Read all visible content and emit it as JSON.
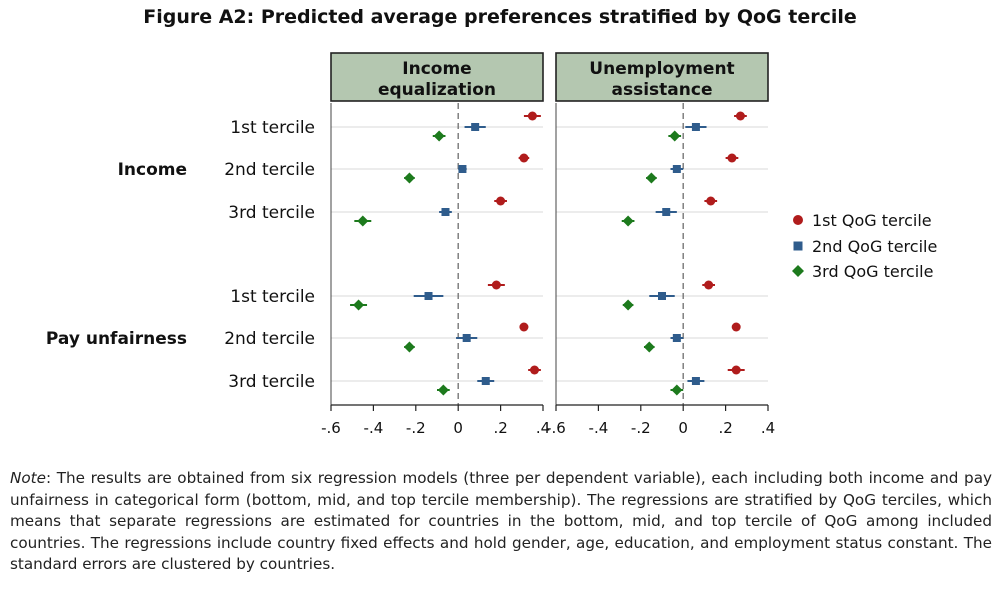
{
  "figure_title": "Figure A2: Predicted average preferences stratified by QoG tercile",
  "colors": {
    "s1": "#b01c1c",
    "s2": "#2f5c8c",
    "s3": "#1d7a1d",
    "strip": "#b4c7b0",
    "grid": "#d8d8d8",
    "zero_line": "#777777"
  },
  "chart_data": {
    "type": "dot-ci",
    "title": "Figure A2: Predicted average preferences stratified by QoG tercile",
    "facets": [
      {
        "title_lines": [
          "Income",
          "equalization"
        ]
      },
      {
        "title_lines": [
          "Unemployment",
          "assistance"
        ]
      }
    ],
    "row_groups": [
      {
        "name": "Income",
        "rows": [
          "1st tercile",
          "2nd tercile",
          "3rd tercile"
        ]
      },
      {
        "name": "Pay unfairness",
        "rows": [
          "1st tercile",
          "2nd tercile",
          "3rd tercile"
        ]
      }
    ],
    "xlim": [
      -0.6,
      0.4
    ],
    "xticks": [
      -0.6,
      -0.4,
      -0.2,
      0,
      0.2,
      0.4
    ],
    "xtick_labels": [
      "-.6",
      "-.4",
      "-.2",
      "0",
      ".2",
      ".4"
    ],
    "reference_line": 0,
    "series": [
      {
        "name": "1st QoG tercile",
        "marker": "circle",
        "values": [
          [
            0.35,
            0.31,
            0.2,
            0.18,
            0.31,
            0.36
          ],
          [
            0.27,
            0.23,
            0.13,
            0.12,
            0.25,
            0.25
          ]
        ],
        "ci_half": [
          [
            0.04,
            0.025,
            0.03,
            0.04,
            0.02,
            0.03
          ],
          [
            0.03,
            0.03,
            0.03,
            0.03,
            0.02,
            0.04
          ]
        ]
      },
      {
        "name": "2nd QoG tercile",
        "marker": "square",
        "values": [
          [
            0.08,
            0.02,
            -0.06,
            -0.14,
            0.04,
            0.13
          ],
          [
            0.06,
            -0.03,
            -0.08,
            -0.1,
            -0.03,
            0.06
          ]
        ],
        "ci_half": [
          [
            0.05,
            0.02,
            0.03,
            0.07,
            0.05,
            0.04
          ],
          [
            0.05,
            0.03,
            0.05,
            0.06,
            0.03,
            0.04
          ]
        ]
      },
      {
        "name": "3rd QoG tercile",
        "marker": "diamond",
        "values": [
          [
            -0.09,
            -0.23,
            -0.45,
            -0.47,
            -0.23,
            -0.07
          ],
          [
            -0.04,
            -0.15,
            -0.26,
            -0.26,
            -0.16,
            -0.03
          ]
        ],
        "ci_half": [
          [
            0.03,
            0.025,
            0.04,
            0.04,
            0.025,
            0.03
          ],
          [
            0.03,
            0.025,
            0.03,
            0.025,
            0.025,
            0.03
          ]
        ]
      }
    ],
    "legend_position": "right"
  },
  "note": {
    "label": "Note",
    "text": ": The results are obtained from six regression models (three per dependent variable), each including both income and pay unfairness in categorical form (bottom, mid, and top tercile membership). The regressions are stratified by QoG terciles, which means that separate regressions are estimated for countries in the bottom, mid, and top tercile of QoG among included countries. The regressions include country fixed effects and hold gender, age, education, and employment status constant. The standard errors are clustered by countries."
  }
}
